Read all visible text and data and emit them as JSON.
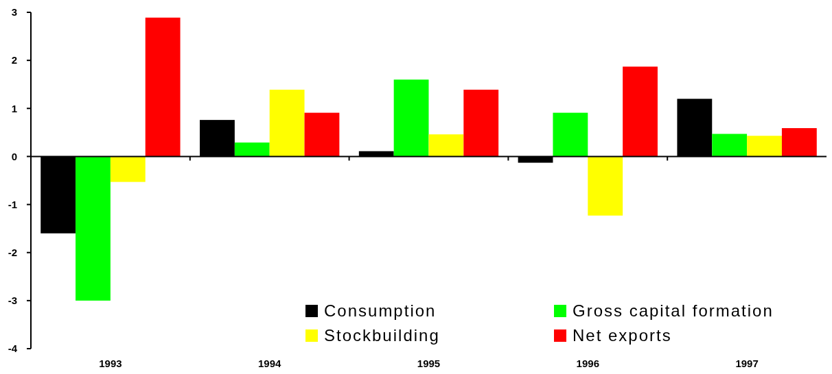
{
  "chart_data": {
    "type": "bar",
    "categories": [
      "1993",
      "1994",
      "1995",
      "1996",
      "1997"
    ],
    "series": [
      {
        "name": "Consumption",
        "color": "#000000",
        "values": [
          -1.6,
          0.76,
          0.11,
          -0.13,
          1.2
        ]
      },
      {
        "name": "Gross capital formation",
        "color": "#00ff00",
        "values": [
          -3.0,
          0.29,
          1.6,
          0.91,
          0.47
        ]
      },
      {
        "name": "Stockbuilding",
        "color": "#ffff00",
        "values": [
          -0.53,
          1.39,
          0.46,
          -1.23,
          0.43
        ]
      },
      {
        "name": "Net exports",
        "color": "#ff0000",
        "values": [
          2.89,
          0.91,
          1.39,
          1.87,
          0.59
        ]
      }
    ],
    "ylim": [
      -4,
      3
    ],
    "yticks": [
      -4,
      -3,
      -2,
      -1,
      0,
      1,
      2,
      3
    ],
    "legend": "bottom right"
  }
}
